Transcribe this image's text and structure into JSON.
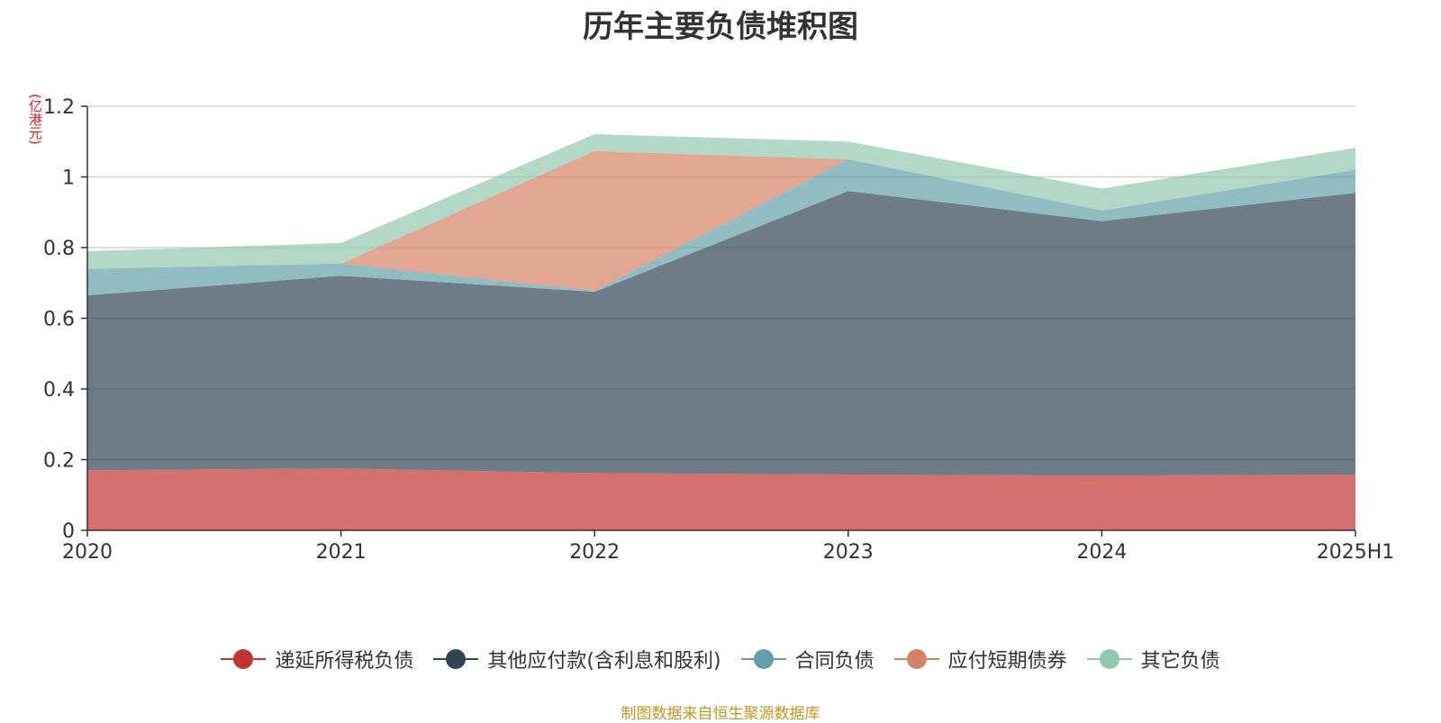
{
  "chart_data": {
    "type": "area",
    "stacked": true,
    "title": "历年主要负债堆积图",
    "unit_label": "(亿港元)",
    "categories": [
      "2020",
      "2021",
      "2022",
      "2023",
      "2024",
      "2025H1"
    ],
    "y_ticks": [
      "0",
      "0.2",
      "0.4",
      "0.6",
      "0.8",
      "1",
      "1.2"
    ],
    "ylim": [
      0,
      1.2
    ],
    "grid": true,
    "legend_position": "bottom",
    "series": [
      {
        "name": "递延所得税负债",
        "color": "#c23531",
        "values": [
          0.17,
          0.175,
          0.162,
          0.158,
          0.155,
          0.158
        ]
      },
      {
        "name": "其他应付款(含利息和股利)",
        "color": "#2f4554",
        "values": [
          0.495,
          0.545,
          0.513,
          0.802,
          0.72,
          0.797
        ]
      },
      {
        "name": "合同负债",
        "color": "#61a0a8",
        "values": [
          0.075,
          0.035,
          0.003,
          0.09,
          0.03,
          0.065
        ]
      },
      {
        "name": "应付短期债券",
        "color": "#d48265",
        "values": [
          0,
          0,
          0.395,
          0,
          0,
          0
        ]
      },
      {
        "name": "其它负债",
        "color": "#91c7ae",
        "values": [
          0.05,
          0.058,
          0.048,
          0.05,
          0.062,
          0.062
        ]
      }
    ],
    "source": "制图数据来自恒生聚源数据库"
  }
}
